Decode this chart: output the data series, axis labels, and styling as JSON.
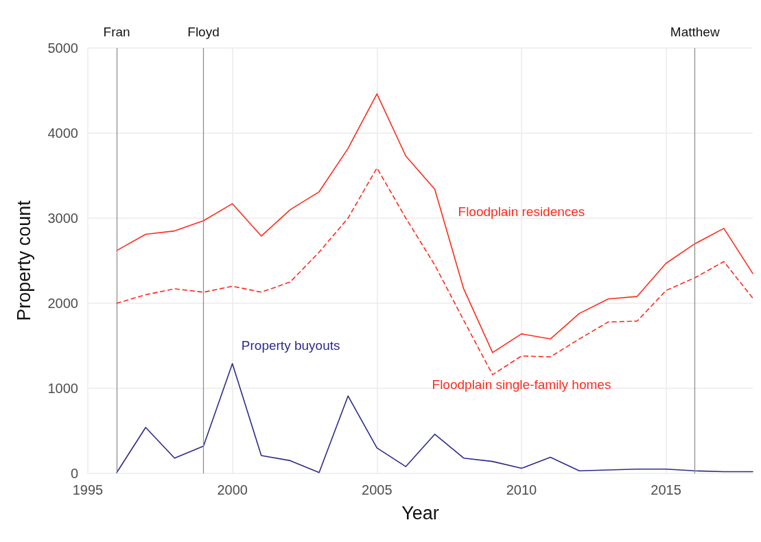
{
  "chart_data": {
    "type": "line",
    "xlabel": "Year",
    "ylabel": "Property count",
    "x": [
      1996,
      1997,
      1998,
      1999,
      2000,
      2001,
      2002,
      2003,
      2004,
      2005,
      2006,
      2007,
      2008,
      2009,
      2010,
      2011,
      2012,
      2013,
      2014,
      2015,
      2016,
      2017,
      2018
    ],
    "series": [
      {
        "name": "Floodplain residences",
        "color": "#ff2a1a",
        "line_style": "solid",
        "values": [
          2620,
          2810,
          2850,
          2970,
          3170,
          2790,
          3100,
          3310,
          3820,
          4460,
          3730,
          3340,
          2170,
          1420,
          1640,
          1580,
          1880,
          2050,
          2080,
          2470,
          2700,
          2880,
          2350
        ]
      },
      {
        "name": "Floodplain single-family homes",
        "color": "#ff2a1a",
        "line_style": "dashed",
        "values": [
          2000,
          2100,
          2170,
          2130,
          2200,
          2130,
          2250,
          2600,
          3000,
          3590,
          3000,
          2450,
          1800,
          1160,
          1380,
          1370,
          1580,
          1780,
          1790,
          2150,
          2300,
          2490,
          2060
        ]
      },
      {
        "name": "Property buyouts",
        "color": "#2b2b8c",
        "line_style": "solid",
        "values": [
          10,
          540,
          180,
          320,
          1290,
          210,
          150,
          10,
          910,
          300,
          80,
          460,
          180,
          140,
          60,
          190,
          30,
          40,
          50,
          50,
          30,
          20,
          20
        ]
      }
    ],
    "xlim": [
      1995,
      2018
    ],
    "xticks": [
      1995,
      2000,
      2005,
      2010,
      2015
    ],
    "ylim": [
      0,
      5000
    ],
    "yticks": [
      0,
      1000,
      2000,
      3000,
      4000,
      5000
    ],
    "ref_lines": [
      {
        "axis": "x",
        "value": 1996,
        "label": "Fran",
        "color": "#888888"
      },
      {
        "axis": "x",
        "value": 1999,
        "label": "Floyd",
        "color": "#888888"
      },
      {
        "axis": "x",
        "value": 2016,
        "label": "Matthew",
        "color": "#888888"
      }
    ],
    "grid": true,
    "legend": false,
    "marker": "none"
  }
}
